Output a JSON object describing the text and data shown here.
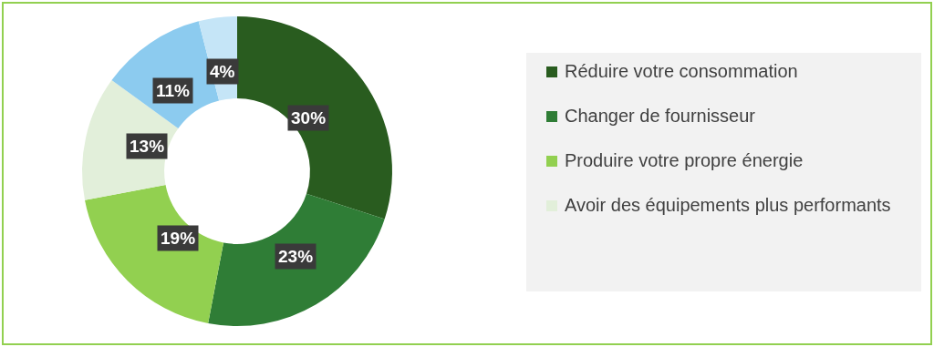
{
  "chart_data": {
    "type": "donut",
    "categories": [
      "Réduire votre consommation",
      "Changer de fournisseur",
      "Produire votre propre énergie",
      "Avoir des équipements plus performants",
      null,
      null
    ],
    "values": [
      30,
      23,
      19,
      13,
      11,
      4
    ],
    "value_labels": [
      "30%",
      "23%",
      "19%",
      "13%",
      "11%",
      "4%"
    ],
    "colors": [
      "#295c1f",
      "#2f7d36",
      "#92d050",
      "#e2efda",
      "#8ccbef",
      "#c5e5f7"
    ],
    "legend": "right"
  }
}
